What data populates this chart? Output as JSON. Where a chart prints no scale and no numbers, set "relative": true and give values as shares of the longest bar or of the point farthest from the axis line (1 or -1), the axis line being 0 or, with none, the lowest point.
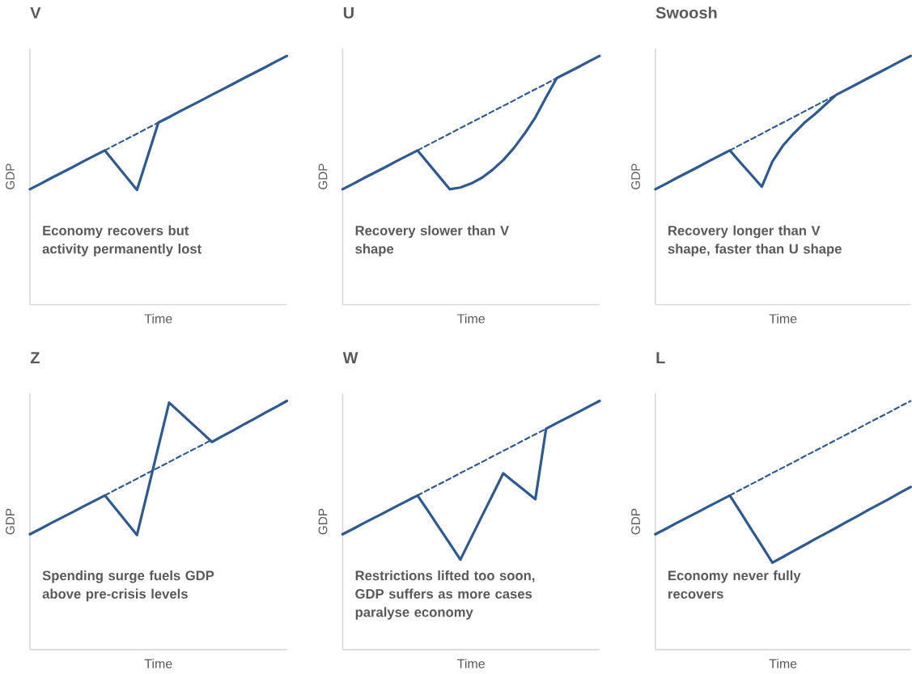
{
  "chart_data": [
    {
      "type": "line",
      "title": "V",
      "xlabel": "Time",
      "ylabel": "GDP",
      "relative": true,
      "annotations": [
        "Economy recovers but activity permanently lost"
      ],
      "categories": [
        null,
        null,
        null,
        null,
        null,
        null,
        null,
        null,
        null,
        null,
        null,
        null,
        null,
        null,
        null,
        null,
        null,
        null,
        null,
        null,
        null,
        null,
        null,
        null,
        null
      ],
      "series": [
        {
          "color": "#2f5a8f",
          "line_style": "solid",
          "values": [
            0.464,
            0.486,
            0.509,
            0.531,
            0.553,
            0.576,
            0.598,
            0.62,
            0.567,
            0.514,
            0.461,
            0.596,
            0.732,
            0.754,
            0.777,
            0.799,
            0.821,
            0.844,
            0.866,
            0.888,
            0.911,
            0.933,
            0.955,
            0.978,
            1.0
          ]
        },
        {
          "color": "#2f5a8f",
          "line_style": "dashed",
          "values": [
            null,
            null,
            null,
            null,
            null,
            null,
            null,
            0.62,
            0.643,
            0.665,
            0.687,
            0.71,
            0.732,
            null,
            null,
            null,
            null,
            null,
            null,
            null,
            null,
            null,
            null,
            null,
            null
          ]
        }
      ]
    },
    {
      "type": "line",
      "title": "U",
      "xlabel": "Time",
      "ylabel": "GDP",
      "relative": true,
      "annotations": [
        "Recovery slower than V shape"
      ],
      "categories": [
        null,
        null,
        null,
        null,
        null,
        null,
        null,
        null,
        null,
        null,
        null,
        null,
        null,
        null,
        null,
        null,
        null,
        null,
        null,
        null,
        null,
        null,
        null,
        null,
        null
      ],
      "series": [
        {
          "color": "#2f5a8f",
          "line_style": "solid",
          "values": [
            0.464,
            0.486,
            0.509,
            0.531,
            0.553,
            0.576,
            0.598,
            0.62,
            0.568,
            0.516,
            0.464,
            0.471,
            0.487,
            0.51,
            0.542,
            0.581,
            0.63,
            0.688,
            0.753,
            0.834,
            0.911,
            0.933,
            0.955,
            0.978,
            1.0
          ]
        },
        {
          "color": "#2f5a8f",
          "line_style": "dashed",
          "values": [
            null,
            null,
            null,
            null,
            null,
            null,
            null,
            0.62,
            0.643,
            0.665,
            0.687,
            0.71,
            0.732,
            0.754,
            0.777,
            0.799,
            0.821,
            0.844,
            0.866,
            0.888,
            0.911,
            null,
            null,
            null,
            null
          ]
        }
      ]
    },
    {
      "type": "line",
      "title": "Swoosh",
      "xlabel": "Time",
      "ylabel": "GDP",
      "relative": true,
      "annotations": [
        "Recovery longer than V shape, faster than U shape"
      ],
      "categories": [
        null,
        null,
        null,
        null,
        null,
        null,
        null,
        null,
        null,
        null,
        null,
        null,
        null,
        null,
        null,
        null,
        null,
        null,
        null,
        null,
        null,
        null,
        null,
        null,
        null
      ],
      "series": [
        {
          "color": "#2f5a8f",
          "line_style": "solid",
          "values": [
            0.464,
            0.486,
            0.509,
            0.531,
            0.553,
            0.576,
            0.598,
            0.62,
            0.571,
            0.523,
            0.474,
            0.575,
            0.64,
            0.688,
            0.731,
            0.766,
            0.805,
            0.844,
            0.866,
            0.888,
            0.911,
            0.933,
            0.955,
            0.978,
            1.0
          ]
        },
        {
          "color": "#2f5a8f",
          "line_style": "dashed",
          "values": [
            null,
            null,
            null,
            null,
            null,
            null,
            null,
            0.62,
            0.643,
            0.665,
            0.687,
            0.71,
            0.732,
            0.754,
            0.777,
            0.799,
            0.821,
            0.844,
            null,
            null,
            null,
            null,
            null,
            null,
            null
          ]
        }
      ]
    },
    {
      "type": "line",
      "title": "Z",
      "xlabel": "Time",
      "ylabel": "GDP",
      "relative": true,
      "annotations": [
        "Spending surge fuels GDP above pre-crisis levels"
      ],
      "categories": [
        null,
        null,
        null,
        null,
        null,
        null,
        null,
        null,
        null,
        null,
        null,
        null,
        null,
        null,
        null,
        null,
        null,
        null,
        null,
        null,
        null,
        null,
        null,
        null,
        null
      ],
      "series": [
        {
          "color": "#2f5a8f",
          "line_style": "solid",
          "values": [
            0.464,
            0.486,
            0.509,
            0.531,
            0.553,
            0.576,
            0.598,
            0.62,
            0.567,
            0.514,
            0.461,
            0.638,
            0.816,
            0.993,
            0.954,
            0.914,
            0.875,
            0.835,
            0.859,
            0.882,
            0.906,
            0.929,
            0.953,
            0.976,
            1.0
          ]
        },
        {
          "color": "#2f5a8f",
          "line_style": "dashed",
          "values": [
            null,
            null,
            null,
            null,
            null,
            null,
            null,
            0.62,
            0.643,
            0.665,
            0.687,
            0.71,
            0.732,
            0.754,
            0.777,
            0.799,
            0.821,
            0.844,
            null,
            null,
            null,
            null,
            null,
            null,
            null
          ]
        }
      ]
    },
    {
      "type": "line",
      "title": "W",
      "xlabel": "Time",
      "ylabel": "GDP",
      "relative": true,
      "annotations": [
        "Restrictions lifted too soon, GDP suffers as more cases paralyse economy"
      ],
      "categories": [
        null,
        null,
        null,
        null,
        null,
        null,
        null,
        null,
        null,
        null,
        null,
        null,
        null,
        null,
        null,
        null,
        null,
        null,
        null,
        null,
        null,
        null,
        null,
        null,
        null
      ],
      "series": [
        {
          "color": "#2f5a8f",
          "line_style": "solid",
          "values": [
            0.464,
            0.486,
            0.509,
            0.531,
            0.553,
            0.576,
            0.598,
            0.62,
            0.556,
            0.491,
            0.427,
            0.362,
            0.449,
            0.536,
            0.622,
            0.709,
            0.674,
            0.64,
            0.605,
            0.888,
            0.911,
            0.933,
            0.955,
            0.978,
            1.0
          ]
        },
        {
          "color": "#2f5a8f",
          "line_style": "dashed",
          "values": [
            null,
            null,
            null,
            null,
            null,
            null,
            null,
            0.62,
            0.643,
            0.665,
            0.687,
            0.71,
            0.732,
            0.754,
            0.777,
            0.799,
            0.821,
            0.844,
            0.866,
            0.888,
            null,
            null,
            null,
            null,
            null
          ]
        }
      ]
    },
    {
      "type": "line",
      "title": "L",
      "xlabel": "Time",
      "ylabel": "GDP",
      "relative": true,
      "annotations": [
        "Economy never fully recovers"
      ],
      "categories": [
        null,
        null,
        null,
        null,
        null,
        null,
        null,
        null,
        null,
        null,
        null,
        null,
        null,
        null,
        null,
        null,
        null,
        null,
        null,
        null,
        null,
        null,
        null,
        null,
        null
      ],
      "series": [
        {
          "color": "#2f5a8f",
          "line_style": "solid",
          "values": [
            0.464,
            0.486,
            0.509,
            0.531,
            0.553,
            0.576,
            0.598,
            0.62,
            0.553,
            0.485,
            0.418,
            0.35,
            0.373,
            0.397,
            0.42,
            0.444,
            0.467,
            0.49,
            0.514,
            0.537,
            0.561,
            0.584,
            0.607,
            0.631,
            0.654
          ]
        },
        {
          "color": "#2f5a8f",
          "line_style": "dashed",
          "values": [
            null,
            null,
            null,
            null,
            null,
            null,
            null,
            0.62,
            0.643,
            0.665,
            0.687,
            0.71,
            0.732,
            0.754,
            0.777,
            0.799,
            0.821,
            0.844,
            0.866,
            0.888,
            0.911,
            0.933,
            0.955,
            0.978,
            1.0
          ]
        }
      ]
    }
  ]
}
